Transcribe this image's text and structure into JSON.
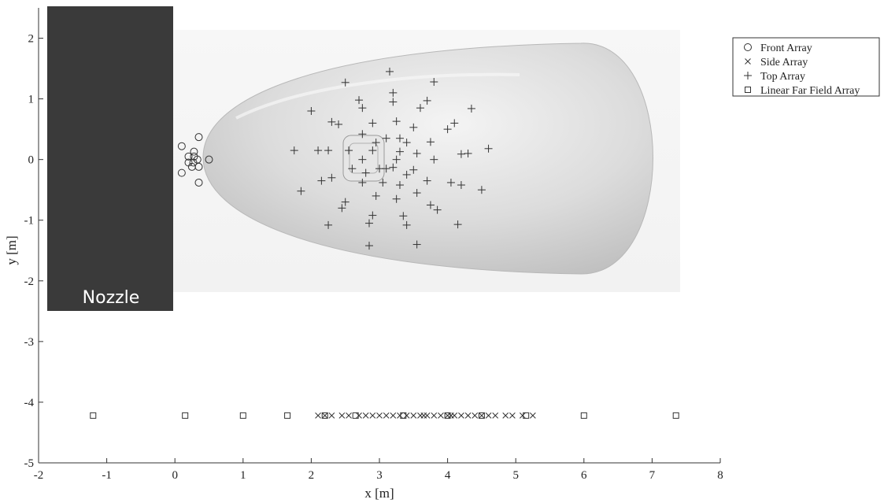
{
  "chart_data": {
    "type": "scatter",
    "xlabel": "x [m]",
    "ylabel": "y [m]",
    "xlim": [
      -2,
      8
    ],
    "ylim": [
      -5,
      2.5
    ],
    "xticks": [
      -2,
      -1,
      0,
      1,
      2,
      3,
      4,
      5,
      6,
      7,
      8
    ],
    "yticks": [
      -5,
      -4,
      -3,
      -2,
      -1,
      0,
      1,
      2
    ],
    "grid": false,
    "legend_position": "top-right",
    "annotations": [
      {
        "text": "Nozzle",
        "x": -1.2,
        "y": -2.4
      }
    ],
    "series": [
      {
        "name": "Front Array",
        "marker": "circle",
        "points": [
          [
            0.1,
            0.22
          ],
          [
            0.35,
            0.37
          ],
          [
            0.2,
            0.05
          ],
          [
            0.28,
            0.05
          ],
          [
            0.33,
            0.0
          ],
          [
            0.2,
            -0.05
          ],
          [
            0.27,
            -0.05
          ],
          [
            0.35,
            -0.12
          ],
          [
            0.25,
            -0.12
          ],
          [
            0.1,
            -0.22
          ],
          [
            0.35,
            -0.38
          ],
          [
            0.28,
            0.13
          ],
          [
            0.5,
            0.0
          ]
        ]
      },
      {
        "name": "Side Array",
        "marker": "x",
        "points": [
          [
            2.1,
            -4.22
          ],
          [
            2.2,
            -4.22
          ],
          [
            2.3,
            -4.22
          ],
          [
            2.45,
            -4.22
          ],
          [
            2.55,
            -4.22
          ],
          [
            2.7,
            -4.22
          ],
          [
            2.8,
            -4.22
          ],
          [
            2.9,
            -4.22
          ],
          [
            3.0,
            -4.22
          ],
          [
            3.1,
            -4.22
          ],
          [
            3.2,
            -4.22
          ],
          [
            3.3,
            -4.22
          ],
          [
            3.4,
            -4.22
          ],
          [
            3.5,
            -4.22
          ],
          [
            3.6,
            -4.22
          ],
          [
            3.65,
            -4.22
          ],
          [
            3.7,
            -4.22
          ],
          [
            3.8,
            -4.22
          ],
          [
            3.9,
            -4.22
          ],
          [
            4.0,
            -4.22
          ],
          [
            4.05,
            -4.22
          ],
          [
            4.1,
            -4.22
          ],
          [
            4.2,
            -4.22
          ],
          [
            4.3,
            -4.22
          ],
          [
            4.4,
            -4.22
          ],
          [
            4.5,
            -4.22
          ],
          [
            4.6,
            -4.22
          ],
          [
            4.7,
            -4.22
          ],
          [
            4.85,
            -4.22
          ],
          [
            4.95,
            -4.22
          ],
          [
            5.1,
            -4.22
          ],
          [
            5.25,
            -4.22
          ]
        ]
      },
      {
        "name": "Top Array",
        "marker": "plus",
        "points": [
          [
            3.15,
            1.45
          ],
          [
            2.5,
            1.27
          ],
          [
            3.8,
            1.28
          ],
          [
            3.2,
            1.1
          ],
          [
            2.7,
            0.98
          ],
          [
            3.2,
            0.95
          ],
          [
            3.7,
            0.97
          ],
          [
            2.75,
            0.85
          ],
          [
            3.6,
            0.85
          ],
          [
            4.35,
            0.84
          ],
          [
            2.0,
            0.8
          ],
          [
            2.3,
            0.62
          ],
          [
            2.4,
            0.58
          ],
          [
            3.25,
            0.63
          ],
          [
            2.9,
            0.6
          ],
          [
            4.1,
            0.6
          ],
          [
            3.5,
            0.53
          ],
          [
            4.0,
            0.5
          ],
          [
            2.75,
            0.42
          ],
          [
            3.1,
            0.35
          ],
          [
            3.3,
            0.35
          ],
          [
            2.95,
            0.28
          ],
          [
            3.75,
            0.29
          ],
          [
            3.4,
            0.28
          ],
          [
            1.75,
            0.15
          ],
          [
            2.1,
            0.15
          ],
          [
            2.25,
            0.15
          ],
          [
            2.55,
            0.15
          ],
          [
            2.9,
            0.15
          ],
          [
            3.3,
            0.13
          ],
          [
            4.2,
            0.09
          ],
          [
            4.3,
            0.1
          ],
          [
            4.6,
            0.18
          ],
          [
            3.55,
            0.1
          ],
          [
            2.75,
            0.0
          ],
          [
            3.25,
            0.0
          ],
          [
            3.8,
            0.0
          ],
          [
            2.6,
            -0.15
          ],
          [
            3.0,
            -0.15
          ],
          [
            3.1,
            -0.15
          ],
          [
            3.2,
            -0.13
          ],
          [
            3.5,
            -0.17
          ],
          [
            2.8,
            -0.22
          ],
          [
            3.4,
            -0.25
          ],
          [
            2.3,
            -0.3
          ],
          [
            2.15,
            -0.35
          ],
          [
            2.75,
            -0.38
          ],
          [
            3.05,
            -0.38
          ],
          [
            3.7,
            -0.35
          ],
          [
            4.05,
            -0.38
          ],
          [
            4.2,
            -0.42
          ],
          [
            1.85,
            -0.52
          ],
          [
            3.3,
            -0.42
          ],
          [
            3.55,
            -0.55
          ],
          [
            4.5,
            -0.5
          ],
          [
            2.95,
            -0.6
          ],
          [
            3.25,
            -0.65
          ],
          [
            2.5,
            -0.7
          ],
          [
            2.45,
            -0.8
          ],
          [
            3.75,
            -0.75
          ],
          [
            3.85,
            -0.83
          ],
          [
            2.9,
            -0.92
          ],
          [
            3.35,
            -0.93
          ],
          [
            2.25,
            -1.08
          ],
          [
            2.85,
            -1.05
          ],
          [
            3.4,
            -1.08
          ],
          [
            4.15,
            -1.07
          ],
          [
            2.85,
            -1.42
          ],
          [
            3.55,
            -1.4
          ]
        ]
      },
      {
        "name": "Linear Far Field Array",
        "marker": "square",
        "points": [
          [
            -1.2,
            -4.22
          ],
          [
            0.15,
            -4.22
          ],
          [
            1.0,
            -4.22
          ],
          [
            1.65,
            -4.22
          ],
          [
            2.2,
            -4.22
          ],
          [
            2.65,
            -4.22
          ],
          [
            3.35,
            -4.22
          ],
          [
            4.0,
            -4.22
          ],
          [
            4.5,
            -4.22
          ],
          [
            5.15,
            -4.22
          ],
          [
            6.0,
            -4.22
          ],
          [
            7.35,
            -4.22
          ]
        ]
      }
    ]
  }
}
